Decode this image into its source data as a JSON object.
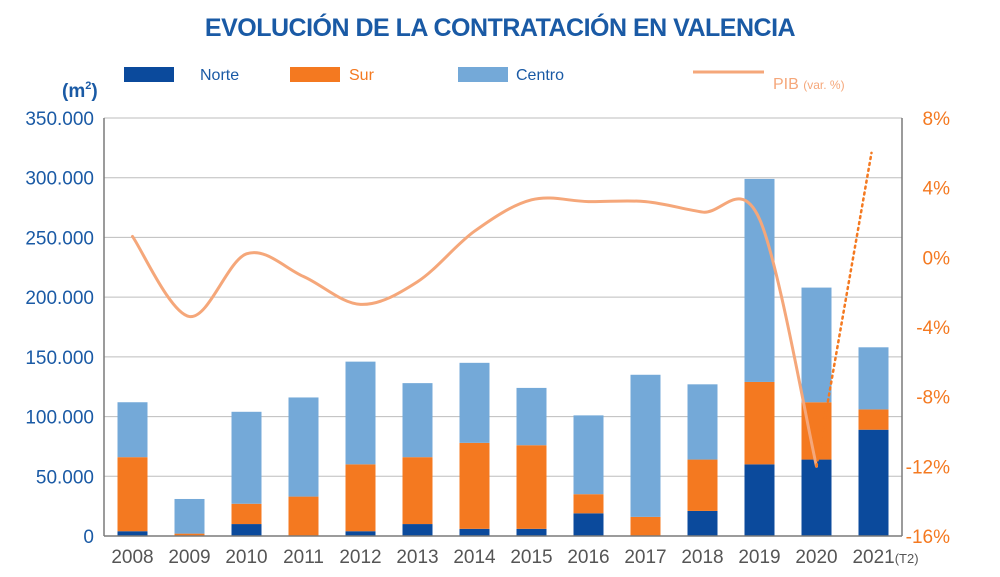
{
  "chart_data": {
    "type": "bar",
    "stacked": true,
    "title": "EVOLUCIÓN DE LA CONTRATACIÓN EN VALENCIA",
    "ylabel_left": "(m²)",
    "ylabel_left_parts": [
      "(m",
      "2",
      ")"
    ],
    "categories": [
      "2008",
      "2009",
      "2010",
      "2011",
      "2012",
      "2013",
      "2014",
      "2015",
      "2016",
      "2017",
      "2018",
      "2019",
      "2020",
      "2021"
    ],
    "last_category_suffix": "(T2)",
    "ylim_left": [
      0,
      350000
    ],
    "left_ticks": [
      "0",
      "50.000",
      "100.000",
      "150.000",
      "200.000",
      "250.000",
      "300.000",
      "350.000"
    ],
    "ylim_right": [
      -16,
      8
    ],
    "right_ticks": [
      "-16%",
      "-12%",
      "-8%",
      "-4%",
      "0%",
      "4%",
      "8%"
    ],
    "grid": true,
    "legend_position": "top",
    "series": [
      {
        "name": "Norte",
        "color": "#0b4a9c",
        "values": [
          4000,
          0,
          10000,
          0,
          4000,
          10000,
          6000,
          6000,
          19000,
          0,
          21000,
          60000,
          64000,
          89000
        ]
      },
      {
        "name": "Sur",
        "color": "#f47920",
        "values": [
          62000,
          2000,
          17000,
          33000,
          56000,
          56000,
          72000,
          70000,
          16000,
          16000,
          43000,
          69000,
          48000,
          17000
        ]
      },
      {
        "name": "Centro",
        "color": "#74a9d8",
        "values": [
          46000,
          29000,
          77000,
          83000,
          86000,
          62000,
          67000,
          48000,
          66000,
          119000,
          63000,
          170000,
          96000,
          52000
        ]
      }
    ],
    "line_series": {
      "name": "PIB",
      "name_suffix": "(var. %)",
      "color": "#f5a77a",
      "x": [
        "2008",
        "2009",
        "2010",
        "2011",
        "2012",
        "2013",
        "2014",
        "2015",
        "2016",
        "2017",
        "2018",
        "2019",
        "2020"
      ],
      "values": [
        1.2,
        -3.4,
        0.2,
        -1.1,
        -2.7,
        -1.4,
        1.5,
        3.3,
        3.2,
        3.2,
        2.6,
        2.2,
        -12.0
      ]
    },
    "projection": {
      "style": "dotted",
      "x": [
        "2020",
        "2021"
      ],
      "values": [
        -12.0,
        6.0
      ]
    }
  },
  "colors": {
    "title": "#1a5aa5",
    "left_axis": "#1a5aa5",
    "right_axis": "#f47920",
    "x_axis": "#555555",
    "grid": "#bdbdbd",
    "legend_text": "#1a5aa5",
    "pib_legend_text": "#f5a77a",
    "axis_line": "#7a7a7a"
  }
}
